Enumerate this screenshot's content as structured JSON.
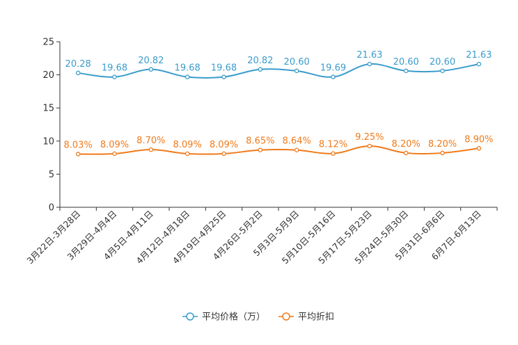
{
  "chart_data": {
    "type": "line",
    "title": "",
    "xlabel": "",
    "ylabel": "",
    "ylim": [
      0,
      25
    ],
    "yticks": [
      0,
      5,
      10,
      15,
      20,
      25
    ],
    "grid": false,
    "legend_position": "bottom-center",
    "categories": [
      "3月22日-3月28日",
      "3月29日-4月4日",
      "4月5日-4月11日",
      "4月12日-4月18日",
      "4月19日-4月25日",
      "4月26日-5月2日",
      "5月3日-5月9日",
      "5月10日-5月16日",
      "5月17日-5月23日",
      "5月24日-5月30日",
      "5月31日-6月6日",
      "6月7日-6月13日"
    ],
    "series": [
      {
        "name": "平均价格（万）",
        "color": "#3a9ccc",
        "values": [
          20.28,
          19.68,
          20.82,
          19.68,
          19.68,
          20.82,
          20.6,
          19.69,
          21.63,
          20.6,
          20.6,
          21.63
        ],
        "labels": [
          "20.28",
          "19.68",
          "20.82",
          "19.68",
          "19.68",
          "20.82",
          "20.60",
          "19.69",
          "21.63",
          "20.60",
          "20.60",
          "21.63"
        ]
      },
      {
        "name": "平均折扣",
        "color": "#f07a1a",
        "values": [
          8.03,
          8.09,
          8.7,
          8.09,
          8.09,
          8.65,
          8.64,
          8.12,
          9.25,
          8.2,
          8.2,
          8.9
        ],
        "labels": [
          "8.03%",
          "8.09%",
          "8.70%",
          "8.09%",
          "8.09%",
          "8.65%",
          "8.64%",
          "8.12%",
          "9.25%",
          "8.20%",
          "8.20%",
          "8.90%"
        ]
      }
    ]
  }
}
